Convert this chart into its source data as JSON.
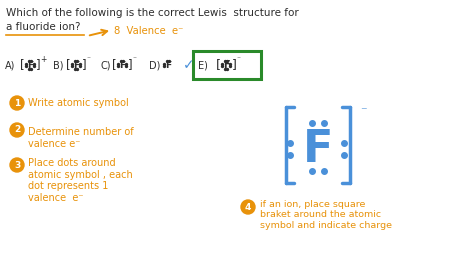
{
  "background_color": "#ffffff",
  "title_line1": "Which of the following is the correct Lewis  structure for",
  "title_line2": "a fluoride ion?",
  "title_color": "#2d2d2d",
  "arrow_color": "#e8920a",
  "underline_color": "#e8920a",
  "options_color": "#2d2d2d",
  "steps_color": "#e8920a",
  "big_F_color": "#4a90d9",
  "green_box_color": "#2a8a2a",
  "step1": "Write atomic symbol",
  "step2": "Determine number of\nvalence e⁻",
  "step3": "Place dots around\natomic symbol , each\ndot represents 1\nvalence  e⁻",
  "step4": "if an ion, place square\nbraket around the atomic\nsymbol and indicate charge",
  "valence_label": "8  Valence  e⁻"
}
